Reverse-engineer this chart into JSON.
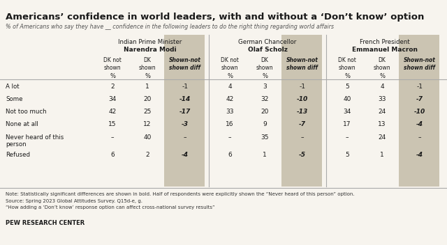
{
  "title": "Americans’ confidence in world leaders, with and without a ‘Don’t know’ option",
  "subtitle": "% of Americans who say they have __ confidence in the following leaders to do the right thing regarding world affairs",
  "leaders": [
    {
      "title_line1": "Indian Prime Minister",
      "title_line2": "Narendra Modi"
    },
    {
      "title_line1": "German Chancellor",
      "title_line2": "Olaf Scholz"
    },
    {
      "title_line1": "French President",
      "title_line2": "Emmanuel Macron"
    }
  ],
  "row_labels": [
    "A lot",
    "Some",
    "Not too much",
    "None at all",
    "Never heard of this\nperson",
    "Refused"
  ],
  "modi_dk_not_shown": [
    "2",
    "34",
    "42",
    "15",
    "–",
    "6"
  ],
  "modi_dk_shown": [
    "1",
    "20",
    "25",
    "12",
    "40",
    "2"
  ],
  "modi_diff": [
    "-1",
    "-14",
    "-17",
    "-3",
    "–",
    "-4"
  ],
  "modi_diff_bold": [
    false,
    true,
    true,
    true,
    false,
    true
  ],
  "scholz_dk_not_shown": [
    "4",
    "42",
    "33",
    "16",
    "–",
    "6"
  ],
  "scholz_dk_shown": [
    "3",
    "32",
    "20",
    "9",
    "35",
    "1"
  ],
  "scholz_diff": [
    "-1",
    "-10",
    "-13",
    "-7",
    "–",
    "-5"
  ],
  "scholz_diff_bold": [
    false,
    true,
    true,
    true,
    false,
    true
  ],
  "macron_dk_not_shown": [
    "5",
    "40",
    "34",
    "17",
    "–",
    "5"
  ],
  "macron_dk_shown": [
    "4",
    "33",
    "24",
    "13",
    "24",
    "1"
  ],
  "macron_diff": [
    "-1",
    "-7",
    "-10",
    "-4",
    "–",
    "-4"
  ],
  "macron_diff_bold": [
    false,
    true,
    true,
    true,
    false,
    true
  ],
  "note1": "Note: Statistically significant differences are shown in bold. Half of respondents were explicitly shown the “Never heard of this person” option.",
  "note2": "Source: Spring 2023 Global Attitudes Survey. Q15d-e, g.",
  "note3": "“How adding a ‘Don’t know’ response option can affect cross-national survey results”",
  "branding": "PEW RESEARCH CENTER",
  "bg_color": "#f7f4ee",
  "diff_col_bg": "#cbc4b2",
  "text_color": "#1a1a1a",
  "note_color": "#333333"
}
